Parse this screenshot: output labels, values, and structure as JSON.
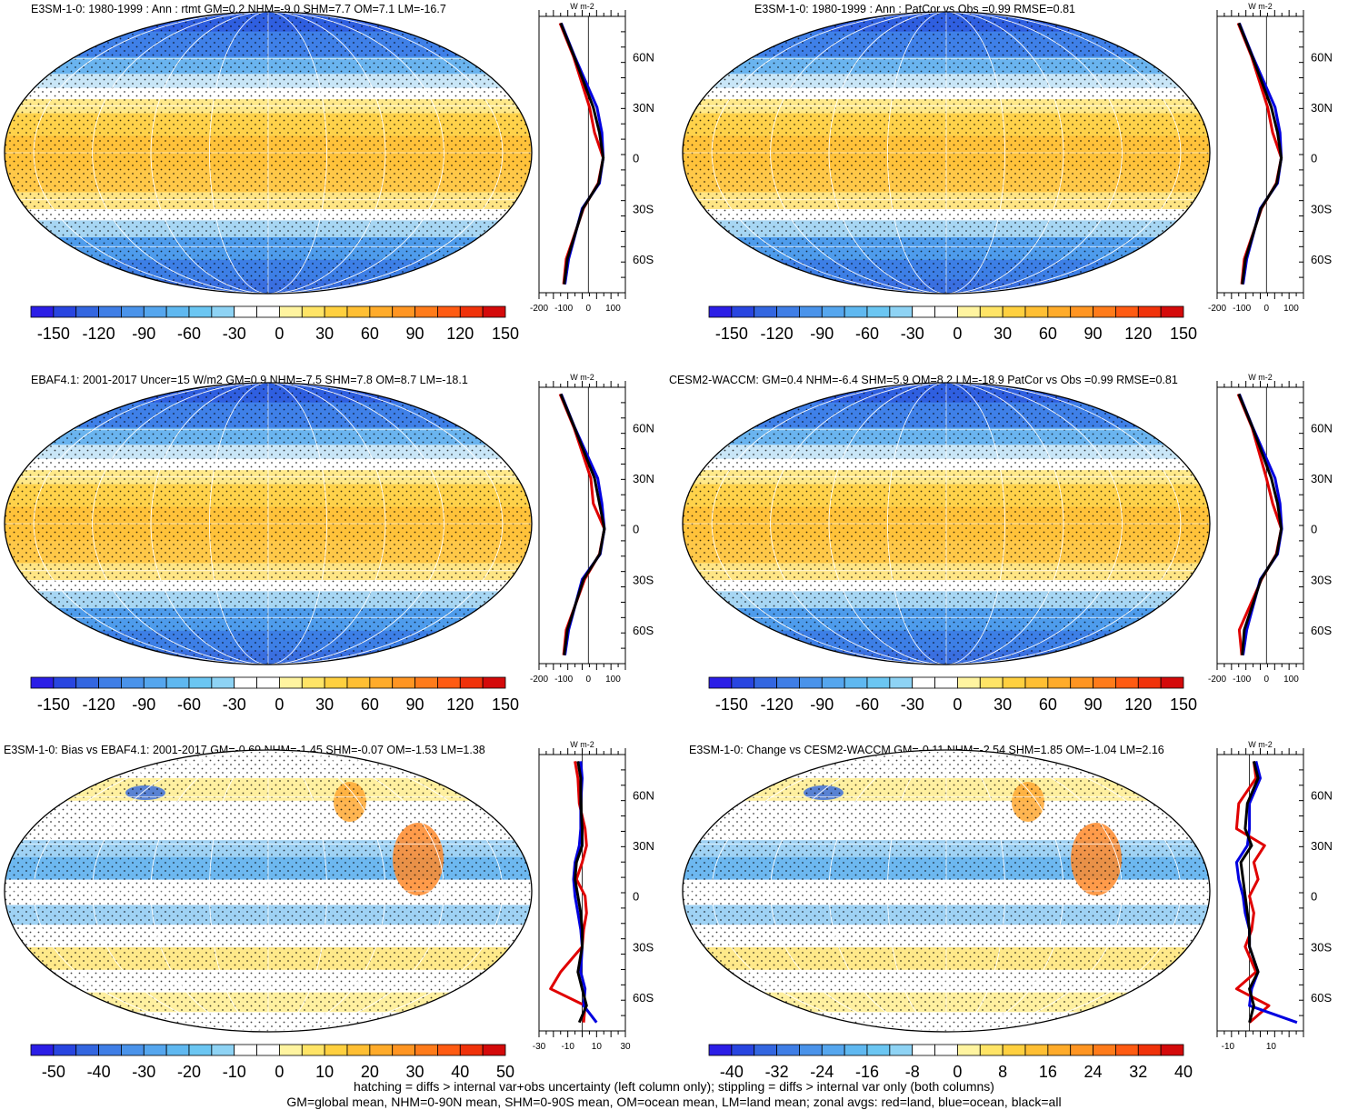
{
  "panels": [
    {
      "id": "model-climatology",
      "title": "E3SM-1-0: 1980-1999 : Ann : rtmt GM=0.2 NHM=-9.0 SHM=7.7 OM=7.1 LM=-16.7",
      "colorbar_labels": [
        "-150",
        "-120",
        "-90",
        "-60",
        "-30",
        "0",
        "30",
        "60",
        "90",
        "120",
        "150"
      ],
      "colorbar_colors": [
        "#2b1ee6",
        "#2845e0",
        "#3366e0",
        "#3f7ee6",
        "#4a93ea",
        "#55a6ee",
        "#5fb8f0",
        "#6bc6f2",
        "#8ed3f4",
        "#ffffff",
        "#ffffff",
        "#fff4a0",
        "#ffe466",
        "#ffd03f",
        "#ffbf33",
        "#ffab2a",
        "#ff9522",
        "#ff7b1a",
        "#ff5b12",
        "#f0320a",
        "#d40a0a"
      ],
      "profile_xticks": [
        "-200",
        "-100",
        "0",
        "100"
      ],
      "profile_unit": "W m-2",
      "lat_labels": [
        "60N",
        "30N",
        "0",
        "30S",
        "60S"
      ]
    },
    {
      "id": "model-pattern-correlation",
      "title": "E3SM-1-0: 1980-1999 : Ann : PatCor vs Obs =0.99 RMSE=0.81",
      "colorbar_labels": [
        "-150",
        "-120",
        "-90",
        "-60",
        "-30",
        "0",
        "30",
        "60",
        "90",
        "120",
        "150"
      ],
      "colorbar_colors": [
        "#2b1ee6",
        "#2845e0",
        "#3366e0",
        "#3f7ee6",
        "#4a93ea",
        "#55a6ee",
        "#5fb8f0",
        "#6bc6f2",
        "#8ed3f4",
        "#ffffff",
        "#ffffff",
        "#fff4a0",
        "#ffe466",
        "#ffd03f",
        "#ffbf33",
        "#ffab2a",
        "#ff9522",
        "#ff7b1a",
        "#ff5b12",
        "#f0320a",
        "#d40a0a"
      ],
      "profile_xticks": [
        "-200",
        "-100",
        "0",
        "100"
      ],
      "profile_unit": "W m-2",
      "lat_labels": [
        "60N",
        "30N",
        "0",
        "30S",
        "60S"
      ]
    },
    {
      "id": "observations",
      "title": "EBAF4.1: 2001-2017 Uncer=15 W/m2 GM=0.9 NHM=-7.5 SHM=7.8 OM=8.7 LM=-18.1",
      "colorbar_labels": [
        "-150",
        "-120",
        "-90",
        "-60",
        "-30",
        "0",
        "30",
        "60",
        "90",
        "120",
        "150"
      ],
      "colorbar_colors": [
        "#2b1ee6",
        "#2845e0",
        "#3366e0",
        "#3f7ee6",
        "#4a93ea",
        "#55a6ee",
        "#5fb8f0",
        "#6bc6f2",
        "#8ed3f4",
        "#ffffff",
        "#ffffff",
        "#fff4a0",
        "#ffe466",
        "#ffd03f",
        "#ffbf33",
        "#ffab2a",
        "#ff9522",
        "#ff7b1a",
        "#ff5b12",
        "#f0320a",
        "#d40a0a"
      ],
      "profile_xticks": [
        "-200",
        "-100",
        "0",
        "100"
      ],
      "profile_unit": "W m-2",
      "lat_labels": [
        "60N",
        "30N",
        "0",
        "30S",
        "60S"
      ]
    },
    {
      "id": "reference-model",
      "title": "CESM2-WACCM: GM=0.4 NHM=-6.4 SHM=5.9 OM=8.2 LM=-18.9 PatCor vs Obs =0.99 RMSE=0.81",
      "colorbar_labels": [
        "-150",
        "-120",
        "-90",
        "-60",
        "-30",
        "0",
        "30",
        "60",
        "90",
        "120",
        "150"
      ],
      "colorbar_colors": [
        "#2b1ee6",
        "#2845e0",
        "#3366e0",
        "#3f7ee6",
        "#4a93ea",
        "#55a6ee",
        "#5fb8f0",
        "#6bc6f2",
        "#8ed3f4",
        "#ffffff",
        "#ffffff",
        "#fff4a0",
        "#ffe466",
        "#ffd03f",
        "#ffbf33",
        "#ffab2a",
        "#ff9522",
        "#ff7b1a",
        "#ff5b12",
        "#f0320a",
        "#d40a0a"
      ],
      "profile_xticks": [
        "-200",
        "-100",
        "0",
        "100"
      ],
      "profile_unit": "W m-2",
      "lat_labels": [
        "60N",
        "30N",
        "0",
        "30S",
        "60S"
      ]
    },
    {
      "id": "bias-vs-obs",
      "title": "E3SM-1-0: Bias vs EBAF4.1: 2001-2017 GM=-0.69 NHM=-1.45 SHM=-0.07 OM=-1.53 LM=1.38",
      "colorbar_labels": [
        "-50",
        "-40",
        "-30",
        "-20",
        "-10",
        "0",
        "10",
        "20",
        "30",
        "40",
        "50"
      ],
      "colorbar_colors": [
        "#2b1ee6",
        "#2845e0",
        "#3366e0",
        "#3f7ee6",
        "#4a93ea",
        "#55a6ee",
        "#5fb8f0",
        "#6bc6f2",
        "#8ed3f4",
        "#ffffff",
        "#ffffff",
        "#fff4a0",
        "#ffe466",
        "#ffd03f",
        "#ffbf33",
        "#ffab2a",
        "#ff9522",
        "#ff7b1a",
        "#ff5b12",
        "#f0320a",
        "#d40a0a"
      ],
      "profile_xticks": [
        "-30",
        "-10",
        "10",
        "30"
      ],
      "profile_unit": "W m-2",
      "lat_labels": [
        "60N",
        "30N",
        "0",
        "30S",
        "60S"
      ]
    },
    {
      "id": "change-vs-reference",
      "title": "E3SM-1-0: Change vs CESM2-WACCM GM=-0.11 NHM=-2.54 SHM=1.85 OM=-1.04 LM=2.16",
      "colorbar_labels": [
        "-40",
        "-32",
        "-24",
        "-16",
        "-8",
        "0",
        "8",
        "16",
        "24",
        "32",
        "40"
      ],
      "colorbar_colors": [
        "#2b1ee6",
        "#2845e0",
        "#3366e0",
        "#3f7ee6",
        "#4a93ea",
        "#55a6ee",
        "#5fb8f0",
        "#6bc6f2",
        "#8ed3f4",
        "#ffffff",
        "#ffffff",
        "#fff4a0",
        "#ffe466",
        "#ffd03f",
        "#ffbf33",
        "#ffab2a",
        "#ff9522",
        "#ff7b1a",
        "#ff5b12",
        "#f0320a",
        "#d40a0a"
      ],
      "profile_xticks": [
        "-10",
        "10"
      ],
      "profile_unit": "W m-2",
      "lat_labels": [
        "60N",
        "30N",
        "0",
        "30S",
        "60S"
      ]
    }
  ],
  "footer": {
    "line1": "hatching = diffs > internal var+obs uncertainty (left column only); stippling = diffs > internal var only (both columns)",
    "line2": "GM=global mean, NHM=0-90N mean, SHM=0-90S mean, OM=ocean mean, LM=land mean; zonal avgs: red=land, blue=ocean, black=all"
  },
  "chart_data": [
    {
      "type": "heatmap",
      "title": "E3SM-1-0: 1980-1999 : Ann : rtmt GM=0.2 NHM=-9.0 SHM=7.7 OM=7.1 LM=-16.7",
      "colorbar_range": [
        -150,
        150
      ],
      "zonal_profile": {
        "xlim": [
          -200,
          150
        ],
        "latitudes": [
          80,
          60,
          30,
          15,
          0,
          -15,
          -30,
          -60,
          -75
        ],
        "series": [
          {
            "name": "land",
            "color": "#e00000",
            "values": [
              -115,
              -60,
              5,
              25,
              60,
              40,
              -20,
              -90,
              -100
            ]
          },
          {
            "name": "ocean",
            "color": "#0000e0",
            "values": [
              -110,
              -55,
              35,
              55,
              60,
              45,
              -25,
              -80,
              -95
            ]
          },
          {
            "name": "all",
            "color": "#000000",
            "values": [
              -112,
              -57,
              20,
              45,
              60,
              42,
              -22,
              -85,
              -98
            ]
          }
        ]
      }
    },
    {
      "type": "heatmap",
      "title": "E3SM-1-0: 1980-1999 : Ann : PatCor vs Obs =0.99 RMSE=0.81",
      "colorbar_range": [
        -150,
        150
      ],
      "zonal_profile": {
        "xlim": [
          -200,
          150
        ],
        "latitudes": [
          80,
          60,
          30,
          15,
          0,
          -15,
          -30,
          -60,
          -75
        ],
        "series": [
          {
            "name": "land",
            "color": "#e00000",
            "values": [
              -115,
              -60,
              5,
              25,
              60,
              40,
              -20,
              -90,
              -100
            ]
          },
          {
            "name": "ocean",
            "color": "#0000e0",
            "values": [
              -110,
              -55,
              35,
              55,
              60,
              45,
              -25,
              -80,
              -95
            ]
          },
          {
            "name": "all",
            "color": "#000000",
            "values": [
              -112,
              -57,
              20,
              45,
              60,
              42,
              -22,
              -85,
              -98
            ]
          }
        ]
      }
    },
    {
      "type": "heatmap",
      "title": "EBAF4.1: 2001-2017 Uncer=15 W/m2 GM=0.9 NHM=-7.5 SHM=7.8 OM=8.7 LM=-18.1",
      "colorbar_range": [
        -150,
        150
      ],
      "zonal_profile": {
        "xlim": [
          -200,
          150
        ],
        "latitudes": [
          80,
          60,
          30,
          15,
          0,
          -15,
          -30,
          -60,
          -75
        ],
        "series": [
          {
            "name": "land",
            "color": "#e00000",
            "values": [
              -115,
              -58,
              10,
              20,
              65,
              45,
              -15,
              -90,
              -100
            ]
          },
          {
            "name": "ocean",
            "color": "#0000e0",
            "values": [
              -110,
              -55,
              38,
              55,
              65,
              48,
              -25,
              -80,
              -95
            ]
          },
          {
            "name": "all",
            "color": "#000000",
            "values": [
              -112,
              -56,
              25,
              45,
              65,
              46,
              -20,
              -85,
              -98
            ]
          }
        ]
      }
    },
    {
      "type": "heatmap",
      "title": "CESM2-WACCM: GM=0.4 NHM=-6.4 SHM=5.9 OM=8.2 LM=-18.9 PatCor vs Obs =0.99 RMSE=0.81",
      "colorbar_range": [
        -150,
        150
      ],
      "zonal_profile": {
        "xlim": [
          -200,
          150
        ],
        "latitudes": [
          80,
          60,
          30,
          15,
          0,
          -15,
          -30,
          -60,
          -75
        ],
        "series": [
          {
            "name": "land",
            "color": "#e00000",
            "values": [
              -115,
              -58,
              0,
              25,
              60,
              40,
              -20,
              -110,
              -100
            ]
          },
          {
            "name": "ocean",
            "color": "#0000e0",
            "values": [
              -110,
              -55,
              35,
              55,
              62,
              45,
              -25,
              -80,
              -95
            ]
          },
          {
            "name": "all",
            "color": "#000000",
            "values": [
              -112,
              -56,
              20,
              45,
              60,
              42,
              -22,
              -90,
              -98
            ]
          }
        ]
      }
    },
    {
      "type": "heatmap",
      "title": "E3SM-1-0: Bias vs EBAF4.1: 2001-2017 GM=-0.69 NHM=-1.45 SHM=-0.07 OM=-1.53 LM=1.38",
      "colorbar_range": [
        -50,
        50
      ],
      "zonal_profile": {
        "xlim": [
          -30,
          30
        ],
        "latitudes": [
          80,
          70,
          55,
          40,
          30,
          20,
          10,
          0,
          -10,
          -20,
          -30,
          -45,
          -55,
          -65,
          -75
        ],
        "series": [
          {
            "name": "land",
            "color": "#e00000",
            "values": [
              -5,
              -3,
              -2,
              2,
              3,
              0,
              -4,
              2,
              3,
              1,
              0,
              -15,
              -22,
              2,
              1
            ]
          },
          {
            "name": "ocean",
            "color": "#0000e0",
            "values": [
              -1,
              0,
              -1,
              -1,
              -2,
              -5,
              -6,
              -5,
              -3,
              -1,
              0,
              -1,
              2,
              1,
              10
            ]
          },
          {
            "name": "all",
            "color": "#000000",
            "values": [
              -3,
              -1,
              -1,
              0,
              0,
              -4,
              -5,
              -3,
              -1,
              0,
              0,
              -3,
              0,
              3,
              -2
            ]
          }
        ]
      }
    },
    {
      "type": "heatmap",
      "title": "E3SM-1-0: Change vs CESM2-WACCM GM=-0.11 NHM=-2.54 SHM=1.85 OM=-1.04 LM=2.16",
      "colorbar_range": [
        -40,
        40
      ],
      "zonal_profile": {
        "xlim": [
          -15,
          25
        ],
        "latitudes": [
          80,
          70,
          55,
          40,
          30,
          20,
          10,
          0,
          -10,
          -20,
          -30,
          -45,
          -55,
          -65,
          -75
        ],
        "series": [
          {
            "name": "land",
            "color": "#e00000",
            "values": [
              2,
              3,
              -5,
              -6,
              7,
              2,
              4,
              0,
              2,
              1,
              -2,
              3,
              -6,
              9,
              0
            ]
          },
          {
            "name": "ocean",
            "color": "#0000e0",
            "values": [
              3,
              5,
              0,
              0,
              -1,
              -6,
              -5,
              -3,
              -2,
              0,
              0,
              4,
              1,
              0,
              22
            ]
          },
          {
            "name": "all",
            "color": "#000000",
            "values": [
              2,
              4,
              -1,
              -2,
              1,
              -4,
              -3,
              -2,
              -1,
              0,
              0,
              4,
              0,
              2,
              0
            ]
          }
        ]
      }
    }
  ]
}
